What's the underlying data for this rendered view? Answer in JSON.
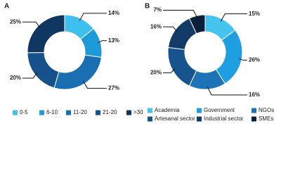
{
  "chart_data": [
    {
      "type": "donut",
      "title": "A",
      "categories": [
        "0-5",
        "6-10",
        "11-20",
        "21-20",
        ">30"
      ],
      "values": [
        14,
        13,
        27,
        20,
        25
      ],
      "value_labels": [
        "14%",
        "13%",
        "27%",
        "20%",
        "25%"
      ],
      "colors": [
        "#3ec0ef",
        "#1d9bd9",
        "#1a6fb2",
        "#16518c",
        "#0f3762"
      ]
    },
    {
      "type": "donut",
      "title": "B",
      "categories": [
        "Academia",
        "Government",
        "NGOs",
        "Artesanal sector",
        "Industrial sector",
        "SMEs"
      ],
      "values": [
        15,
        26,
        16,
        20,
        16,
        7
      ],
      "value_labels": [
        "15%",
        "26%",
        "16%",
        "20%",
        "16%",
        "7%"
      ],
      "colors": [
        "#45c4f0",
        "#1f9fe1",
        "#1c73b6",
        "#17548d",
        "#123b67",
        "#0c1f3b"
      ]
    }
  ]
}
